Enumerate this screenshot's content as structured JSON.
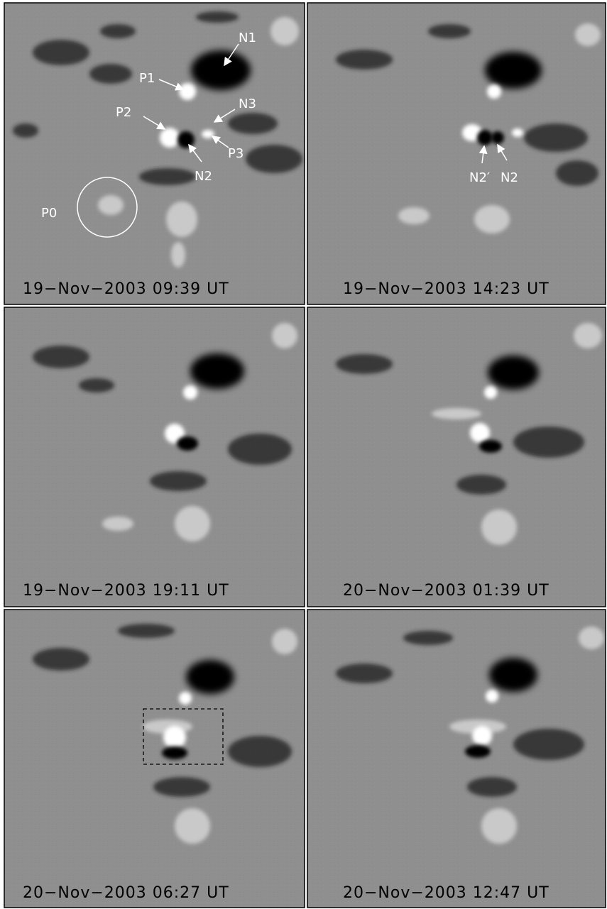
{
  "figure": {
    "palette": {
      "background": "#8f8f8f",
      "negative": "#000000",
      "positive": "#ffffff",
      "border": "#000000",
      "separator": "#ffffff"
    },
    "panels": [
      {
        "id": "p1",
        "caption": "19−Nov−2003 09:39 UT",
        "annotations": [
          {
            "text": "N1"
          },
          {
            "text": "P1"
          },
          {
            "text": "P2"
          },
          {
            "text": "N3"
          },
          {
            "text": "P3"
          },
          {
            "text": "N2"
          },
          {
            "text": "P0"
          }
        ]
      },
      {
        "id": "p2",
        "caption": "19−Nov−2003 14:23 UT",
        "annotations": [
          {
            "text": "N2′"
          },
          {
            "text": "N2"
          }
        ]
      },
      {
        "id": "p3",
        "caption": "19−Nov−2003 19:11 UT",
        "annotations": []
      },
      {
        "id": "p4",
        "caption": "20−Nov−2003 01:39 UT",
        "annotations": []
      },
      {
        "id": "p5",
        "caption": "20−Nov−2003 06:27 UT",
        "annotations": []
      },
      {
        "id": "p6",
        "caption": "20−Nov−2003 12:47 UT",
        "annotations": []
      }
    ]
  }
}
